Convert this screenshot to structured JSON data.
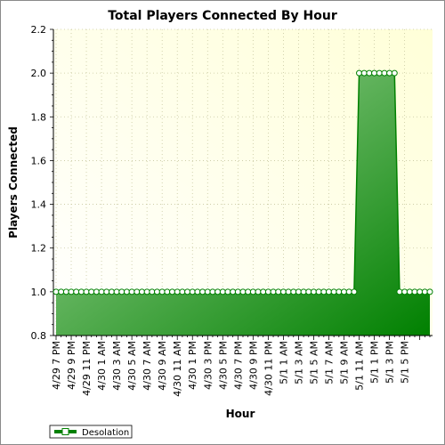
{
  "colors": {
    "plot_bg_light": "#ffffff",
    "plot_bg_yellow": "#ffffd8",
    "series_line": "#008000",
    "fill_light": "#a8d8a0",
    "fill_dark": "#008000",
    "marker_fill": "#ffffff",
    "grid": "#c8c8a0"
  },
  "chart_data": {
    "type": "area",
    "title": "Total Players Connected By Hour",
    "xlabel": "Hour",
    "ylabel": "Players Connected",
    "ylim": [
      0.8,
      2.2
    ],
    "yticks": [
      "0.8",
      "1.0",
      "1.2",
      "1.4",
      "1.6",
      "1.8",
      "2.0",
      "2.2"
    ],
    "grid": true,
    "legend": "bottom-left",
    "x_tick_labels": [
      "4/29 7 PM",
      "4/29 9 PM",
      "4/29 11 PM",
      "4/30 1 AM",
      "4/30 3 AM",
      "4/30 5 AM",
      "4/30 7 AM",
      "4/30 9 AM",
      "4/30 11 AM",
      "4/30 1 PM",
      "4/30 3 PM",
      "4/30 5 PM",
      "4/30 7 PM",
      "4/30 9 PM",
      "4/30 11 PM",
      "5/1 1 AM",
      "5/1 3 AM",
      "5/1 5 AM",
      "5/1 7 AM",
      "5/1 9 AM",
      "5/1 11 AM",
      "5/1 1 PM",
      "5/1 3 PM",
      "5/1 5 PM"
    ],
    "series": [
      {
        "name": "Desolation",
        "x_start": "4/29 7 PM",
        "interval": "1 hour",
        "values": [
          1,
          1,
          1,
          1,
          1,
          1,
          1,
          1,
          1,
          1,
          1,
          1,
          1,
          1,
          1,
          1,
          1,
          1,
          1,
          1,
          1,
          1,
          1,
          1,
          1,
          1,
          1,
          1,
          1,
          1,
          1,
          1,
          1,
          1,
          1,
          1,
          1,
          1,
          1,
          1,
          1,
          1,
          1,
          1,
          1,
          1,
          1,
          1,
          1,
          1,
          1,
          1,
          1,
          1,
          1,
          1,
          1,
          1,
          1,
          1,
          2,
          2,
          2,
          2,
          2,
          2,
          2,
          2,
          1,
          1,
          1,
          1,
          1,
          1,
          1
        ]
      }
    ]
  }
}
